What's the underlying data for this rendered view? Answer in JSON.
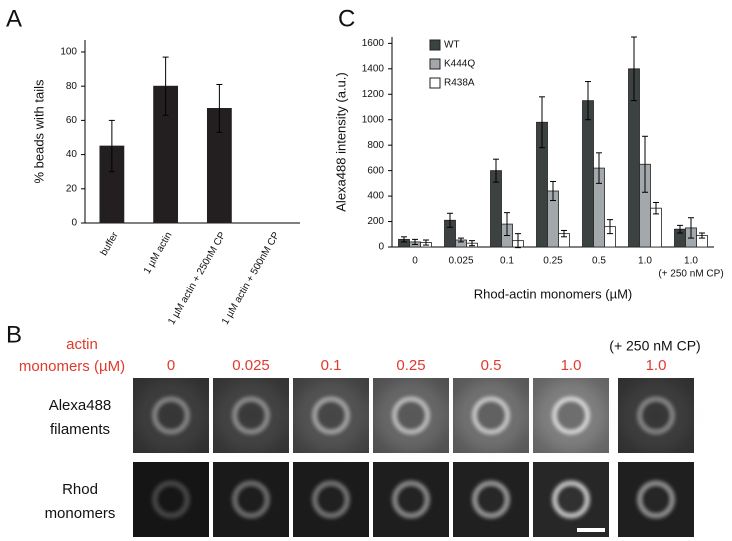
{
  "chart_data": [
    {
      "type": "bar",
      "ylabel": "% beads with tails",
      "categories": [
        "buffer",
        "1 µM actin",
        "1 µM actin + 250nM CP",
        "1 µM actin + 500nM CP"
      ],
      "values": [
        45,
        80,
        67,
        null
      ],
      "errors": [
        15,
        17,
        14,
        null
      ],
      "color": "#231f20",
      "ylim": [
        0,
        107
      ],
      "yticks": [
        0,
        20,
        40,
        60,
        80,
        100
      ]
    },
    {
      "type": "bar",
      "ylabel": "Alexa488 intensity (a.u.)",
      "xlabel": "Rhod-actin monomers (µM)",
      "categories": [
        "0",
        "0.025",
        "0.1",
        "0.25",
        "0.5",
        "1.0",
        "1.0"
      ],
      "annotation": "(+ 250 nM CP)",
      "series": [
        {
          "name": "WT",
          "color": "#3b4241",
          "values": [
            60,
            210,
            600,
            980,
            1150,
            1400,
            140
          ],
          "errors": [
            20,
            55,
            90,
            200,
            150,
            250,
            30
          ]
        },
        {
          "name": "K444Q",
          "color": "#a3a8ac",
          "values": [
            40,
            55,
            180,
            440,
            620,
            650,
            150
          ],
          "errors": [
            20,
            15,
            90,
            75,
            120,
            220,
            80
          ]
        },
        {
          "name": "R438A",
          "color": "#ffffff",
          "values": [
            35,
            30,
            50,
            105,
            160,
            305,
            90
          ],
          "errors": [
            20,
            20,
            55,
            25,
            55,
            45,
            20
          ]
        }
      ],
      "ylim": [
        0,
        1650
      ],
      "yticks": [
        0,
        200,
        400,
        600,
        800,
        1000,
        1200,
        1400,
        1600
      ],
      "legend": "upper left"
    }
  ],
  "panel_labels": [
    "A",
    "B",
    "C"
  ],
  "panel_b": {
    "header": [
      "actin",
      "monomers (µM)"
    ],
    "columns": [
      "0",
      "0.025",
      "0.1",
      "0.25",
      "0.5",
      "1.0",
      "1.0"
    ],
    "cp_note": "(+ 250 nM CP)",
    "rows": [
      [
        "Alexa488",
        "filaments"
      ],
      [
        "Rhod",
        "monomers"
      ]
    ]
  }
}
